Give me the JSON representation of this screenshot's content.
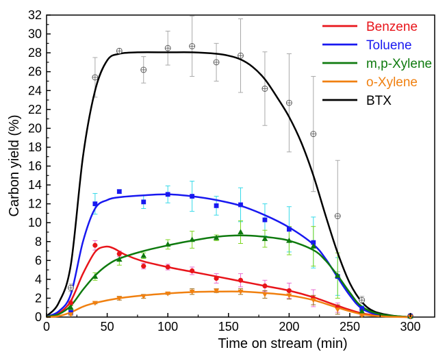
{
  "chart_data": {
    "type": "line",
    "xlabel": "Time on stream (min)",
    "ylabel": "Carbon yield (%)",
    "xlim": [
      0,
      320
    ],
    "ylim": [
      0,
      32
    ],
    "x_ticks": [
      0,
      50,
      100,
      150,
      200,
      250,
      300
    ],
    "y_ticks": [
      0,
      2,
      4,
      6,
      8,
      10,
      12,
      14,
      16,
      18,
      20,
      22,
      24,
      26,
      28,
      30,
      32
    ],
    "grid": false,
    "legend_position": "top-right",
    "series": [
      {
        "name": "Benzene",
        "color": "#e8141a",
        "marker": "circle",
        "error_color": "#e86ad0",
        "points": [
          [
            20,
            1.5
          ],
          [
            40,
            7.6
          ],
          [
            60,
            6.7
          ],
          [
            80,
            5.4
          ],
          [
            100,
            5.3
          ],
          [
            120,
            4.9
          ],
          [
            140,
            4.1
          ],
          [
            160,
            3.9
          ],
          [
            180,
            3.3
          ],
          [
            200,
            2.8
          ],
          [
            220,
            2.0
          ],
          [
            240,
            1.0
          ],
          [
            260,
            0.4
          ],
          [
            300,
            0.1
          ]
        ],
        "errors": [
          0.3,
          0.5,
          0.3,
          0.3,
          0.3,
          0.4,
          0.5,
          0.7,
          0.6,
          0.8,
          0.9,
          0.5,
          0.2,
          0.1
        ],
        "fit": [
          [
            0,
            0.05
          ],
          [
            10,
            0.4
          ],
          [
            20,
            1.7
          ],
          [
            30,
            4.6
          ],
          [
            40,
            6.9
          ],
          [
            48,
            7.45
          ],
          [
            55,
            7.3
          ],
          [
            65,
            6.6
          ],
          [
            80,
            5.9
          ],
          [
            100,
            5.3
          ],
          [
            120,
            4.8
          ],
          [
            140,
            4.3
          ],
          [
            160,
            3.8
          ],
          [
            180,
            3.3
          ],
          [
            200,
            2.8
          ],
          [
            220,
            2.1
          ],
          [
            240,
            1.2
          ],
          [
            260,
            0.4
          ],
          [
            280,
            0.1
          ],
          [
            300,
            0.0
          ]
        ]
      },
      {
        "name": "Toluene",
        "color": "#1818f0",
        "marker": "square",
        "error_color": "#35d9e8",
        "points": [
          [
            20,
            0.5
          ],
          [
            40,
            12.0
          ],
          [
            60,
            13.3
          ],
          [
            80,
            12.2
          ],
          [
            100,
            13.0
          ],
          [
            120,
            12.8
          ],
          [
            140,
            11.8
          ],
          [
            160,
            11.9
          ],
          [
            180,
            10.3
          ],
          [
            200,
            9.3
          ],
          [
            220,
            7.9
          ],
          [
            240,
            4.3
          ],
          [
            260,
            0.9
          ],
          [
            300,
            0.1
          ]
        ],
        "errors": [
          0.2,
          1.1,
          0.2,
          0.7,
          0.9,
          1.6,
          1.0,
          1.8,
          1.7,
          2.4,
          2.7,
          2.0,
          0.3,
          0.1
        ],
        "fit": [
          [
            0,
            0.05
          ],
          [
            10,
            0.6
          ],
          [
            20,
            2.4
          ],
          [
            30,
            8.0
          ],
          [
            40,
            11.5
          ],
          [
            50,
            12.4
          ],
          [
            60,
            12.7
          ],
          [
            80,
            12.9
          ],
          [
            100,
            13.0
          ],
          [
            120,
            12.8
          ],
          [
            140,
            12.4
          ],
          [
            160,
            11.8
          ],
          [
            180,
            10.8
          ],
          [
            200,
            9.5
          ],
          [
            220,
            7.7
          ],
          [
            230,
            6.2
          ],
          [
            240,
            4.2
          ],
          [
            250,
            2.3
          ],
          [
            260,
            0.9
          ],
          [
            275,
            0.2
          ],
          [
            300,
            0.0
          ]
        ]
      },
      {
        "name": "m,p-Xylene",
        "color": "#0e7a0e",
        "marker": "triangle",
        "error_color": "#7bd61c",
        "points": [
          [
            20,
            1.0
          ],
          [
            40,
            4.3
          ],
          [
            60,
            6.1
          ],
          [
            80,
            6.5
          ],
          [
            100,
            7.7
          ],
          [
            120,
            8.2
          ],
          [
            140,
            8.4
          ],
          [
            160,
            9.0
          ],
          [
            180,
            8.3
          ],
          [
            200,
            8.1
          ],
          [
            220,
            7.5
          ],
          [
            240,
            4.4
          ],
          [
            260,
            0.6
          ],
          [
            300,
            0.1
          ]
        ],
        "errors": [
          0.2,
          0.4,
          0.6,
          0.3,
          0.5,
          0.9,
          0.3,
          1.2,
          0.9,
          1.5,
          2.1,
          2.4,
          0.2,
          0.1
        ],
        "fit": [
          [
            0,
            0.05
          ],
          [
            10,
            0.3
          ],
          [
            20,
            1.2
          ],
          [
            30,
            2.9
          ],
          [
            40,
            4.4
          ],
          [
            50,
            5.5
          ],
          [
            60,
            6.2
          ],
          [
            80,
            7.0
          ],
          [
            100,
            7.6
          ],
          [
            120,
            8.1
          ],
          [
            140,
            8.5
          ],
          [
            160,
            8.65
          ],
          [
            180,
            8.5
          ],
          [
            200,
            8.1
          ],
          [
            220,
            7.1
          ],
          [
            230,
            6.0
          ],
          [
            240,
            4.4
          ],
          [
            250,
            2.6
          ],
          [
            260,
            1.1
          ],
          [
            275,
            0.3
          ],
          [
            300,
            0.0
          ]
        ]
      },
      {
        "name": "o-Xylene",
        "color": "#f08010",
        "marker": "down-triangle",
        "error_color": "#9a6a1a",
        "points": [
          [
            20,
            0.3
          ],
          [
            40,
            1.5
          ],
          [
            60,
            2.0
          ],
          [
            80,
            2.2
          ],
          [
            100,
            2.5
          ],
          [
            120,
            2.7
          ],
          [
            140,
            2.8
          ],
          [
            160,
            2.7
          ],
          [
            180,
            2.4
          ],
          [
            200,
            2.3
          ],
          [
            220,
            1.8
          ],
          [
            240,
            0.8
          ],
          [
            260,
            0.2
          ],
          [
            300,
            0.05
          ]
        ],
        "errors": [
          0.1,
          0.1,
          0.2,
          0.2,
          0.1,
          0.3,
          0.2,
          0.3,
          0.4,
          0.4,
          0.5,
          0.5,
          0.1,
          0.05
        ],
        "fit": [
          [
            0,
            0.0
          ],
          [
            10,
            0.1
          ],
          [
            20,
            0.5
          ],
          [
            30,
            1.1
          ],
          [
            40,
            1.5
          ],
          [
            60,
            2.0
          ],
          [
            80,
            2.3
          ],
          [
            100,
            2.5
          ],
          [
            120,
            2.65
          ],
          [
            140,
            2.7
          ],
          [
            160,
            2.7
          ],
          [
            180,
            2.55
          ],
          [
            200,
            2.3
          ],
          [
            220,
            1.8
          ],
          [
            240,
            1.0
          ],
          [
            260,
            0.3
          ],
          [
            280,
            0.05
          ],
          [
            300,
            0.0
          ]
        ]
      },
      {
        "name": "BTX",
        "color": "#000000",
        "marker": "crossed-circle",
        "error_color": "#a8a8a8",
        "points": [
          [
            20,
            3.1
          ],
          [
            40,
            25.4
          ],
          [
            60,
            28.2
          ],
          [
            80,
            26.2
          ],
          [
            100,
            28.5
          ],
          [
            120,
            28.7
          ],
          [
            140,
            27.0
          ],
          [
            160,
            27.7
          ],
          [
            180,
            24.2
          ],
          [
            200,
            22.7
          ],
          [
            220,
            19.4
          ],
          [
            240,
            10.7
          ],
          [
            260,
            1.8
          ],
          [
            300,
            0.1
          ]
        ],
        "errors": [
          0.4,
          2.1,
          0.2,
          1.4,
          1.8,
          3.2,
          2.0,
          3.9,
          3.9,
          5.2,
          6.1,
          5.9,
          0.4,
          0.1
        ],
        "fit": [
          [
            0,
            0.1
          ],
          [
            10,
            1.5
          ],
          [
            20,
            5.5
          ],
          [
            30,
            17.0
          ],
          [
            40,
            24.0
          ],
          [
            50,
            27.2
          ],
          [
            60,
            27.9
          ],
          [
            75,
            28.05
          ],
          [
            100,
            28.05
          ],
          [
            120,
            28.05
          ],
          [
            140,
            27.9
          ],
          [
            150,
            27.7
          ],
          [
            160,
            27.3
          ],
          [
            170,
            26.5
          ],
          [
            180,
            25.2
          ],
          [
            190,
            23.3
          ],
          [
            200,
            21.2
          ],
          [
            210,
            18.5
          ],
          [
            220,
            15.0
          ],
          [
            230,
            10.8
          ],
          [
            240,
            6.8
          ],
          [
            250,
            3.6
          ],
          [
            260,
            1.6
          ],
          [
            270,
            0.6
          ],
          [
            285,
            0.15
          ],
          [
            300,
            0.0
          ]
        ]
      }
    ]
  }
}
